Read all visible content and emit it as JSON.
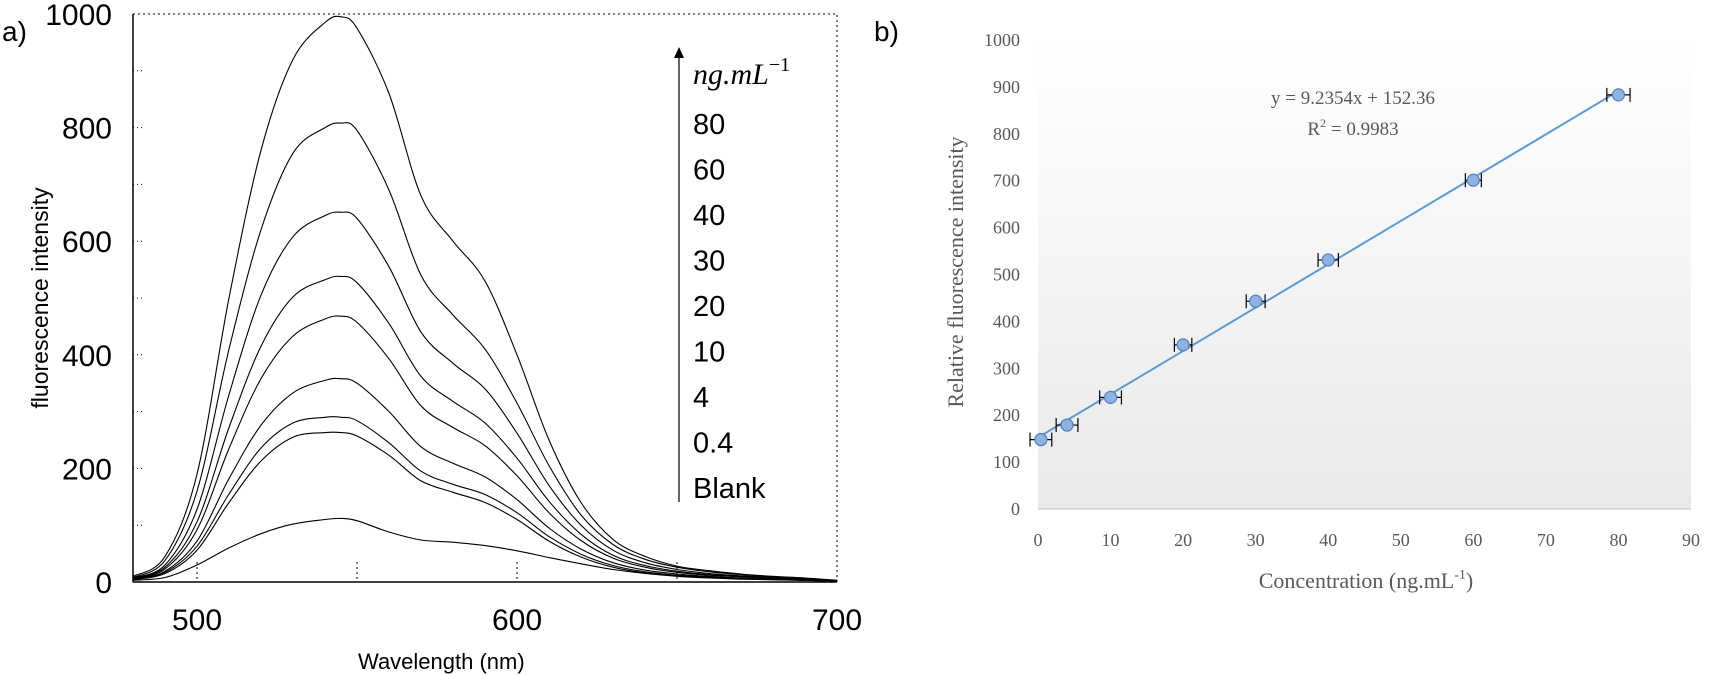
{
  "chart_data": [
    {
      "type": "line",
      "panel_label": "a)",
      "xlabel": "Wavelength (nm)",
      "ylabel": "fluorescence intensity",
      "xlim": [
        480,
        700
      ],
      "ylim": [
        0,
        1000
      ],
      "x_ticks": [
        "500",
        "600",
        "700"
      ],
      "y_ticks": [
        "0",
        "200",
        "400",
        "600",
        "800",
        "1000"
      ],
      "legend": {
        "unit_base": "ng.mL",
        "unit_exp": "−1",
        "entries": [
          "80",
          "60",
          "40",
          "30",
          "20",
          "10",
          "4",
          "0.4",
          "Blank"
        ],
        "placement": "right",
        "arrow": "up"
      },
      "x": [
        480,
        490,
        500,
        510,
        520,
        530,
        540,
        545,
        550,
        560,
        570,
        580,
        590,
        600,
        610,
        620,
        630,
        640,
        650,
        660,
        670,
        680,
        690,
        700
      ],
      "series": [
        {
          "values": [
            10,
            45,
            190,
            500,
            760,
            920,
            985,
            995,
            975,
            860,
            680,
            600,
            530,
            400,
            250,
            140,
            75,
            45,
            28,
            20,
            14,
            10,
            7,
            3
          ]
        },
        {
          "values": [
            8,
            38,
            160,
            410,
            620,
            755,
            800,
            808,
            795,
            690,
            540,
            470,
            410,
            315,
            205,
            118,
            66,
            40,
            26,
            18,
            13,
            9,
            6,
            3
          ]
        },
        {
          "values": [
            7,
            30,
            128,
            330,
            505,
            608,
            645,
            651,
            640,
            555,
            440,
            385,
            340,
            262,
            170,
            100,
            56,
            34,
            22,
            15,
            11,
            8,
            5,
            2
          ]
        },
        {
          "values": [
            6,
            26,
            106,
            272,
            415,
            502,
            532,
            538,
            527,
            455,
            362,
            318,
            280,
            218,
            142,
            84,
            47,
            29,
            19,
            13,
            10,
            7,
            5,
            2
          ]
        },
        {
          "values": [
            6,
            23,
            92,
            235,
            358,
            433,
            463,
            468,
            457,
            393,
            310,
            272,
            240,
            187,
            122,
            73,
            42,
            26,
            17,
            12,
            9,
            6,
            4,
            2
          ]
        },
        {
          "values": [
            5,
            19,
            72,
            182,
            276,
            333,
            355,
            358,
            350,
            300,
            238,
            209,
            185,
            145,
            95,
            58,
            34,
            21,
            14,
            10,
            7,
            5,
            4,
            2
          ]
        },
        {
          "values": [
            5,
            17,
            63,
            155,
            236,
            280,
            290,
            290,
            284,
            245,
            195,
            172,
            154,
            122,
            80,
            49,
            29,
            18,
            12,
            9,
            6,
            5,
            3,
            2
          ]
        },
        {
          "values": [
            4,
            15,
            56,
            140,
            213,
            255,
            263,
            263,
            257,
            223,
            178,
            158,
            140,
            110,
            72,
            44,
            26,
            16,
            11,
            8,
            6,
            4,
            3,
            2
          ]
        },
        {
          "values": [
            3,
            8,
            30,
            60,
            85,
            102,
            110,
            112,
            108,
            88,
            74,
            70,
            64,
            55,
            43,
            32,
            22,
            15,
            10,
            7,
            5,
            4,
            3,
            2
          ]
        }
      ]
    },
    {
      "type": "scatter",
      "panel_label": "b)",
      "xlabel_base": "Concentration (ng.mL",
      "xlabel_exp": "-1",
      "xlabel_close": ")",
      "ylabel": "Relative fluorescence intensity",
      "xlim": [
        0,
        90
      ],
      "ylim": [
        0,
        1000
      ],
      "x_ticks": [
        "0",
        "10",
        "20",
        "30",
        "40",
        "50",
        "60",
        "70",
        "80",
        "90"
      ],
      "y_ticks": [
        "0",
        "100",
        "200",
        "300",
        "400",
        "500",
        "600",
        "700",
        "800",
        "900",
        "1000"
      ],
      "x": [
        0.4,
        4,
        10,
        20,
        30,
        40,
        60,
        80
      ],
      "y": [
        148,
        179,
        238,
        350,
        443,
        531,
        701,
        883
      ],
      "x_error": [
        1.5,
        1.5,
        1.5,
        1.2,
        1.3,
        1.4,
        1.1,
        1.6
      ],
      "trendline": {
        "slope": 9.2354,
        "intercept": 152.36,
        "x_range": [
          0,
          80
        ]
      },
      "equation": "y = 9.2354x + 152.36",
      "r2_base": "R",
      "r2_exp": "2",
      "r2_value": " = 0.9983",
      "colors": {
        "marker": "#8db3e2",
        "marker_edge": "#4f81bd",
        "line": "#5b9bd5"
      }
    }
  ]
}
